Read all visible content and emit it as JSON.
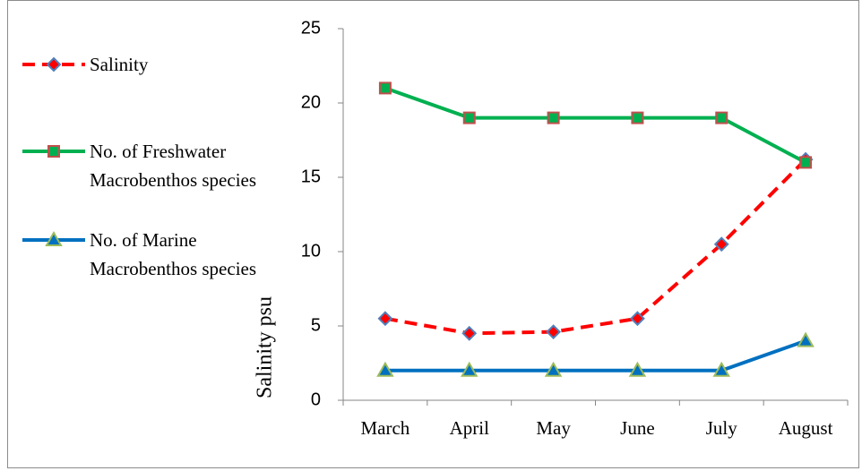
{
  "chart_data": {
    "type": "line",
    "y_label": "Salinity psu",
    "categories": [
      "March",
      "April",
      "May",
      "June",
      "July",
      "August"
    ],
    "series": [
      {
        "name": "Salinity",
        "color": "#ff0000",
        "dashed": true,
        "marker": "diamond",
        "marker_edge": "#4f81bd",
        "values": [
          5.5,
          4.5,
          4.6,
          5.5,
          10.5,
          16.2
        ]
      },
      {
        "name": "No. of Freshwater Macrobenthos species",
        "color": "#00b050",
        "dashed": false,
        "marker": "square",
        "marker_edge": "#c0504d",
        "values": [
          21,
          19,
          19,
          19,
          19,
          16
        ]
      },
      {
        "name": "No. of Marine Macrobenthos species",
        "color": "#0070c0",
        "dashed": false,
        "marker": "triangle",
        "marker_edge": "#9bbb59",
        "values": [
          2,
          2,
          2,
          2,
          2,
          4
        ]
      }
    ],
    "ylim": [
      0,
      25
    ],
    "yticks": [
      0,
      5,
      10,
      15,
      20,
      25
    ],
    "grid": false,
    "legend": "left"
  }
}
